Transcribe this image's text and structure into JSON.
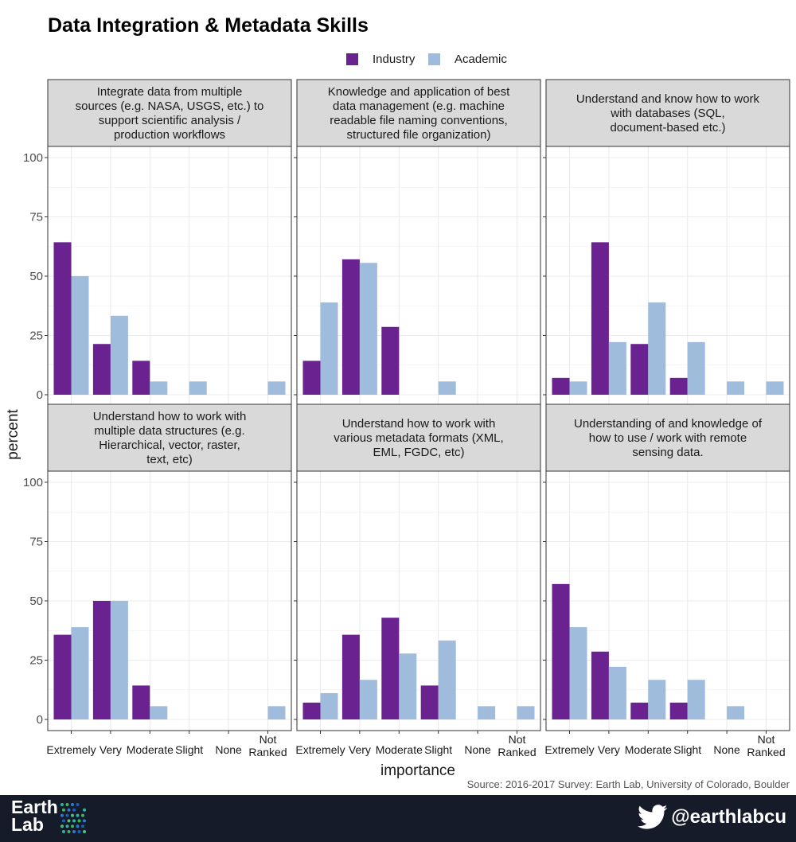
{
  "title": "Data Integration & Metadata Skills",
  "colors": {
    "industry": "#6a2291",
    "academic": "#9fbcdc"
  },
  "legend": [
    {
      "name": "Industry",
      "color": "#6a2291"
    },
    {
      "name": "Academic",
      "color": "#9fbcdc"
    }
  ],
  "axes": {
    "xlabel": "importance",
    "ylabel": "percent"
  },
  "source": "Source: 2016-2017 Survey: Earth Lab, University of Colorado, Boulder",
  "footer": {
    "logo_line1": "Earth",
    "logo_line2": "Lab",
    "handle": "@earthlabcu",
    "twitter_icon": "twitter-bird-icon"
  },
  "chart_data": {
    "type": "bar",
    "categories": [
      "Extremely",
      "Very",
      "Moderate",
      "Slight",
      "None",
      "Not Ranked"
    ],
    "ylim": [
      0,
      100
    ],
    "yticks": [
      0,
      25,
      50,
      75,
      100
    ],
    "grid": true,
    "legend_position": "top",
    "panels": [
      {
        "title": [
          "Integrate data from multiple",
          "sources (e.g. NASA, USGS, etc.) to",
          "support scientific analysis /",
          "production workflows"
        ],
        "series": [
          {
            "name": "Industry",
            "values": [
              64.3,
              21.4,
              14.3,
              null,
              null,
              null
            ]
          },
          {
            "name": "Academic",
            "values": [
              50,
              33.3,
              5.6,
              5.6,
              null,
              5.6
            ]
          }
        ]
      },
      {
        "title": [
          "Knowledge and application of best",
          "data management (e.g. machine",
          "readable file naming conventions,",
          "structured file organization)"
        ],
        "series": [
          {
            "name": "Industry",
            "values": [
              14.3,
              57.1,
              28.6,
              null,
              null,
              null
            ]
          },
          {
            "name": "Academic",
            "values": [
              38.9,
              55.6,
              null,
              5.6,
              null,
              null
            ]
          }
        ]
      },
      {
        "title": [
          "Understand and know how to work",
          "with databases (SQL,",
          "document-based etc.)"
        ],
        "series": [
          {
            "name": "Industry",
            "values": [
              7.1,
              64.3,
              21.4,
              7.1,
              null,
              null
            ]
          },
          {
            "name": "Academic",
            "values": [
              5.6,
              22.2,
              38.9,
              22.2,
              5.6,
              5.6
            ]
          }
        ]
      },
      {
        "title": [
          "Understand how to work with",
          "multiple data structures (e.g.",
          "Hierarchical, vector, raster,",
          "text, etc)"
        ],
        "series": [
          {
            "name": "Industry",
            "values": [
              35.7,
              50,
              14.3,
              null,
              null,
              null
            ]
          },
          {
            "name": "Academic",
            "values": [
              38.9,
              50,
              5.6,
              null,
              null,
              5.6
            ]
          }
        ]
      },
      {
        "title": [
          "Understand how to work with",
          "various metadata formats (XML,",
          "EML, FGDC, etc)"
        ],
        "series": [
          {
            "name": "Industry",
            "values": [
              7.1,
              35.7,
              42.9,
              14.3,
              null,
              null
            ]
          },
          {
            "name": "Academic",
            "values": [
              11.1,
              16.7,
              27.8,
              33.3,
              5.6,
              5.6
            ]
          }
        ]
      },
      {
        "title": [
          "Understanding of and knowledge of",
          "how to use / work with remote",
          "sensing data."
        ],
        "series": [
          {
            "name": "Industry",
            "values": [
              57.1,
              28.6,
              7.1,
              7.1,
              null,
              null
            ]
          },
          {
            "name": "Academic",
            "values": [
              38.9,
              22.2,
              16.7,
              16.7,
              5.6,
              null
            ]
          }
        ]
      }
    ]
  }
}
